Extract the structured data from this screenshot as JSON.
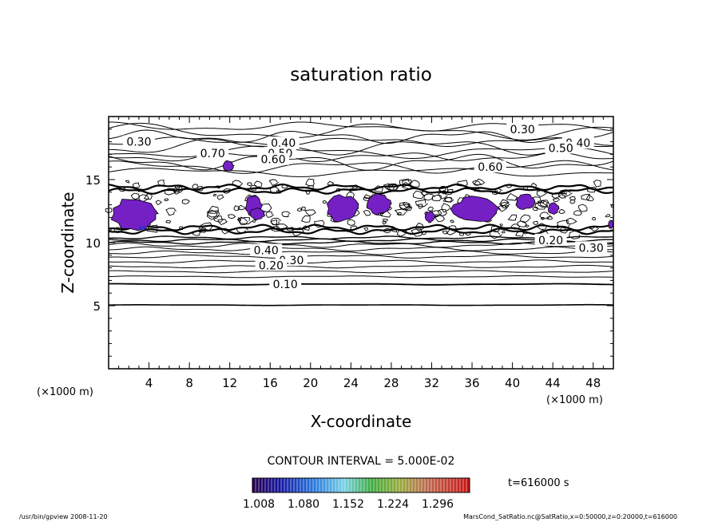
{
  "chart_data": {
    "type": "contour",
    "title": "saturation ratio",
    "xlabel": "X-coordinate",
    "ylabel": "Z-coordinate",
    "x_unit": "(×1000 m)",
    "y_unit": "(×1000 m)",
    "xlim": [
      0,
      50
    ],
    "ylim": [
      0,
      20
    ],
    "x_ticks": [
      4,
      8,
      12,
      16,
      20,
      24,
      28,
      32,
      36,
      40,
      44,
      48
    ],
    "y_ticks": [
      5,
      10,
      15
    ],
    "contour_interval_text": "CONTOUR INTERVAL = 5.000E-02",
    "time_text": "t=616000 s",
    "contour_labels": [
      {
        "text": "0.30",
        "x": 3.0,
        "z": 18.0
      },
      {
        "text": "0.40",
        "x": 17.3,
        "z": 17.9
      },
      {
        "text": "0.50",
        "x": 17.0,
        "z": 17.1
      },
      {
        "text": "0.60",
        "x": 16.3,
        "z": 16.6
      },
      {
        "text": "0.70",
        "x": 10.3,
        "z": 17.1
      },
      {
        "text": "0.30",
        "x": 41.0,
        "z": 19.0
      },
      {
        "text": "0.40",
        "x": 46.5,
        "z": 17.9
      },
      {
        "text": "0.50",
        "x": 44.8,
        "z": 17.5
      },
      {
        "text": "0.60",
        "x": 37.8,
        "z": 16.0
      },
      {
        "text": "0.40",
        "x": 15.6,
        "z": 9.4
      },
      {
        "text": "0.30",
        "x": 18.1,
        "z": 8.6
      },
      {
        "text": "0.20",
        "x": 16.1,
        "z": 8.2
      },
      {
        "text": "0.10",
        "x": 17.5,
        "z": 6.7
      },
      {
        "text": "0.20",
        "x": 43.8,
        "z": 10.2
      },
      {
        "text": "0.30",
        "x": 47.8,
        "z": 9.6
      }
    ],
    "colorbar": {
      "tick_labels": [
        "1.008",
        "1.080",
        "1.152",
        "1.224",
        "1.296"
      ]
    },
    "footer_left": "/usr/bin/gpview   2008-11-20",
    "footer_right": "MarsCond_SatRatio.nc@SatRatio,x=0:50000,z=0:20000,t=616000",
    "colors": {
      "fill": "#7420c4",
      "fill_deep": "#3a2ad0"
    }
  }
}
